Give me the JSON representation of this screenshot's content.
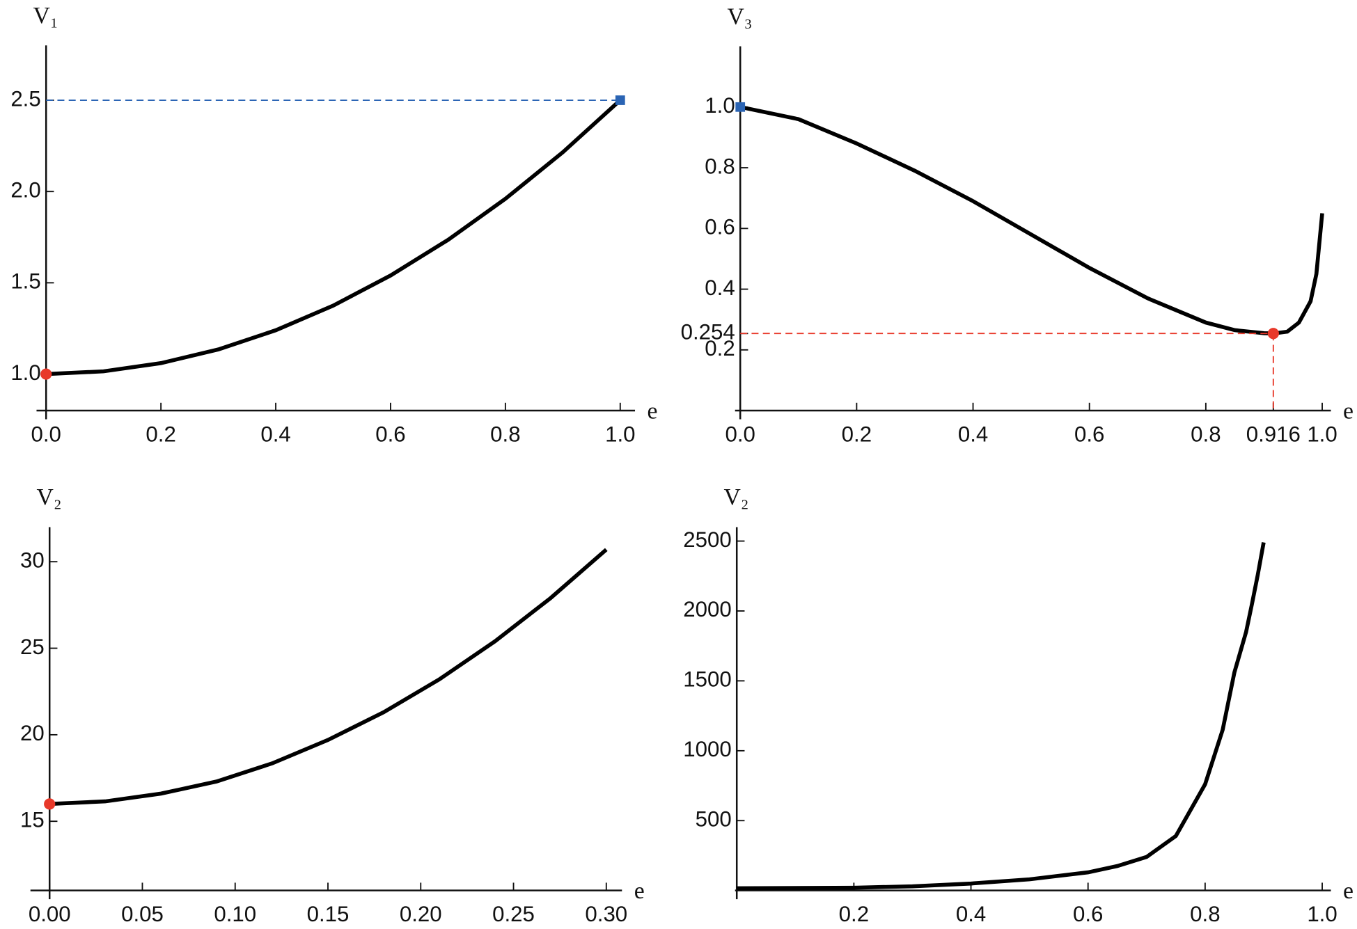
{
  "chart_data": [
    {
      "type": "line",
      "y_label": "V₁",
      "x_label": "e",
      "x": [
        0,
        0.1,
        0.2,
        0.3,
        0.4,
        0.5,
        0.6,
        0.7,
        0.8,
        0.9,
        1.0
      ],
      "values": [
        1.0,
        1.015,
        1.06,
        1.135,
        1.24,
        1.375,
        1.54,
        1.735,
        1.96,
        2.215,
        2.5
      ],
      "color": "#000000",
      "xlim": [
        0,
        1
      ],
      "ylim": [
        0.8,
        2.8
      ],
      "xticks": [
        {
          "value": 0,
          "label": "0.0"
        },
        0.2,
        0.4,
        0.6,
        0.8,
        {
          "value": 1,
          "label": "1.0"
        }
      ],
      "yticks": [
        {
          "value": 1,
          "label": "1.0"
        },
        1.5,
        {
          "value": 2,
          "label": "2.0"
        },
        2.5
      ],
      "markers": [
        {
          "x": 0,
          "y": 1.0,
          "shape": "circle",
          "color": "#e8392a"
        },
        {
          "x": 1.0,
          "y": 2.5,
          "shape": "square",
          "color": "#2a64b4",
          "guide": "h"
        }
      ]
    },
    {
      "type": "line",
      "y_label": "V₃",
      "x_label": "e",
      "x": [
        0,
        0.1,
        0.2,
        0.3,
        0.4,
        0.5,
        0.6,
        0.7,
        0.8,
        0.85,
        0.9,
        0.916,
        0.94,
        0.96,
        0.98,
        0.99,
        1.0
      ],
      "values": [
        1.0,
        0.96,
        0.88,
        0.79,
        0.69,
        0.58,
        0.47,
        0.37,
        0.29,
        0.265,
        0.255,
        0.254,
        0.26,
        0.29,
        0.36,
        0.45,
        0.65
      ],
      "color": "#000000",
      "xlim": [
        0,
        1
      ],
      "ylim": [
        0,
        1.2
      ],
      "xticks": [
        {
          "value": 0,
          "label": "0.0"
        },
        0.2,
        0.4,
        0.6,
        0.8,
        0.916,
        {
          "value": 1,
          "label": "1.0"
        }
      ],
      "yticks": [
        0.2,
        0.254,
        0.4,
        0.6,
        0.8,
        {
          "value": 1,
          "label": "1.0"
        }
      ],
      "markers": [
        {
          "x": 0,
          "y": 1.0,
          "shape": "square",
          "color": "#2a64b4"
        },
        {
          "x": 0.916,
          "y": 0.254,
          "shape": "circle",
          "color": "#e8392a",
          "guide": "hv"
        }
      ]
    },
    {
      "type": "line",
      "y_label": "V₂",
      "x_label": "e",
      "x": [
        0,
        0.03,
        0.06,
        0.09,
        0.12,
        0.15,
        0.18,
        0.21,
        0.24,
        0.27,
        0.3
      ],
      "values": [
        16,
        16.15,
        16.6,
        17.3,
        18.35,
        19.7,
        21.3,
        23.2,
        25.4,
        27.9,
        30.7
      ],
      "color": "#000000",
      "xlim": [
        0,
        0.3
      ],
      "ylim": [
        11,
        32
      ],
      "xticks": [
        {
          "value": 0,
          "label": "0.00"
        },
        0.05,
        {
          "value": 0.1,
          "label": "0.10"
        },
        0.15,
        {
          "value": 0.2,
          "label": "0.20"
        },
        0.25,
        {
          "value": 0.3,
          "label": "0.30"
        }
      ],
      "yticks": [
        15,
        20,
        25,
        30
      ],
      "markers": [
        {
          "x": 0,
          "y": 16,
          "shape": "circle",
          "color": "#e8392a"
        }
      ]
    },
    {
      "type": "line",
      "y_label": "V₂",
      "x_label": "e",
      "x": [
        0,
        0.2,
        0.3,
        0.4,
        0.5,
        0.6,
        0.65,
        0.7,
        0.75,
        0.8,
        0.83,
        0.85,
        0.87,
        0.88,
        0.89,
        0.9
      ],
      "values": [
        16,
        20,
        30,
        50,
        80,
        130,
        175,
        240,
        390,
        760,
        1150,
        1560,
        1850,
        2050,
        2260,
        2490
      ],
      "color": "#000000",
      "xlim": [
        0,
        1
      ],
      "ylim": [
        0,
        2600
      ],
      "xticks": [
        0.2,
        0.4,
        0.6,
        0.8,
        {
          "value": 1,
          "label": "1.0"
        }
      ],
      "yticks": [
        500,
        1000,
        1500,
        2000,
        2500
      ],
      "markers": []
    }
  ]
}
